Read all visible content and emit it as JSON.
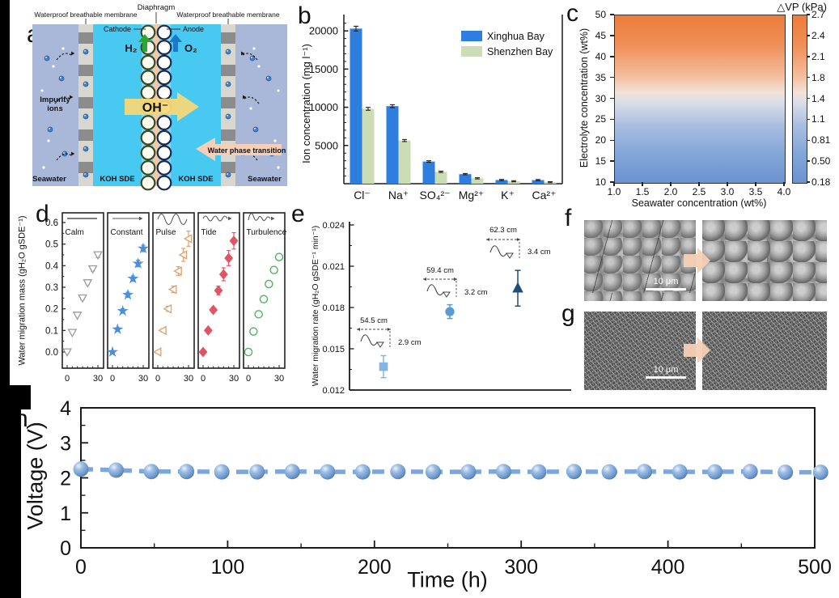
{
  "figure": {
    "panel_labels": {
      "a": "a",
      "b": "b",
      "c": "c",
      "d": "d",
      "e": "e",
      "f": "f",
      "g": "g",
      "h": "h"
    }
  },
  "panel_a": {
    "diaphragm": "Diaphragm",
    "membrane_left": "Waterproof breathable membrane",
    "membrane_right": "Waterproof breathable membrane",
    "cathode": "Cathode",
    "anode": "Anode",
    "h2": "H₂",
    "o2": "O₂",
    "oh": "OH⁻",
    "impurity_line1": "Impurity",
    "impurity_line2": "ions",
    "water_phase_transition": "Water phase transition",
    "seawater_left": "Seawater",
    "seawater_right": "Seawater",
    "koh_sde_left": "KOH SDE",
    "koh_sde_right": "KOH SDE",
    "colors": {
      "seawater_bg": "#a9b7d9",
      "koh": "#48c9f1",
      "diaphragm": "#f0c9a6",
      "membrane_block": "#8c8c8c",
      "membrane_bg": "#d9d8d0",
      "oh_arrow": "#f6d878",
      "phase_arrow": "#f6cfb6",
      "h2_green": "#2aa832",
      "o2_blue": "#1e78c8"
    }
  },
  "panel_f": {
    "scale_bar": "10 μm"
  },
  "panel_g": {
    "scale_bar": "10 μm"
  },
  "chart_data": [
    {
      "panel": "b",
      "type": "bar",
      "ylabel": "Ion concentration (mg l⁻¹)",
      "categories": [
        "Cl⁻",
        "Na⁺",
        "SO₄²⁻",
        "Mg²⁺",
        "K⁺",
        "Ca²⁺"
      ],
      "series": [
        {
          "name": "Xinghua Bay",
          "color": "#2e7ee0",
          "values": [
            20300,
            10150,
            2900,
            1250,
            480,
            470
          ]
        },
        {
          "name": "Shenzhen Bay",
          "color": "#ccdcb4",
          "values": [
            9800,
            5650,
            1550,
            700,
            320,
            200
          ]
        }
      ],
      "yticks": [
        5000,
        10000,
        15000,
        20000
      ],
      "ylim": [
        0,
        21500
      ],
      "legend_position": "top-right",
      "grid": false
    },
    {
      "panel": "c",
      "type": "heatmap",
      "xlabel": "Seawater concentration (wt%)",
      "ylabel": "Electrolyte concentration (wt%)",
      "xticks": [
        "1.0",
        "1.5",
        "2.0",
        "2.5",
        "3.0",
        "3.5",
        "4.0"
      ],
      "yticks": [
        10,
        15,
        20,
        25,
        30,
        35,
        40,
        45,
        50
      ],
      "xlim": [
        1.0,
        4.0
      ],
      "ylim": [
        10,
        50
      ],
      "colorbar_title": "△VP (kPa)",
      "colorbar_ticks": [
        "2.7",
        "2.4",
        "2.1",
        "1.8",
        "1.4",
        "1.1",
        "0.81",
        "0.50",
        "0.18"
      ],
      "gradient_stops": [
        "#ec7c3c 0%",
        "#ef8f57 18%",
        "#f5bd9c 36%",
        "#f1e2d8 46%",
        "#dadfe8 52%",
        "#a9bde0 66%",
        "#84a7d8 82%",
        "#6b93d2 100%"
      ]
    },
    {
      "panel": "d",
      "type": "scatter-multipanel",
      "ylabel": "Water migration mass (gH₂O gSDE⁻¹)",
      "x": [
        0,
        5,
        10,
        15,
        20,
        25,
        30
      ],
      "xticks": [
        0,
        30
      ],
      "yticks": [
        0.0,
        0.1,
        0.2,
        0.3,
        0.4,
        0.5,
        0.6
      ],
      "ylim": [
        -0.075,
        0.645
      ],
      "subpanels": [
        {
          "name": "Calm",
          "marker": "triangle-down",
          "fill": "open",
          "color": "#9a9a9a",
          "values": [
            0,
            0.09,
            0.17,
            0.25,
            0.32,
            0.385,
            0.45
          ],
          "errors": [
            0,
            0.005,
            0.005,
            0.008,
            0.008,
            0.01,
            0.012
          ]
        },
        {
          "name": "Constant",
          "marker": "star",
          "fill": "solid",
          "color": "#4a90d9",
          "values": [
            0,
            0.105,
            0.19,
            0.265,
            0.34,
            0.41,
            0.48
          ],
          "errors": [
            0,
            0.008,
            0.01,
            0.012,
            0.012,
            0.015,
            0.015
          ]
        },
        {
          "name": "Pulse",
          "marker": "triangle-left",
          "fill": "open",
          "color": "#e2a06c",
          "values": [
            0,
            0.1,
            0.2,
            0.29,
            0.375,
            0.45,
            0.525
          ],
          "errors": [
            0,
            0.008,
            0.012,
            0.015,
            0.02,
            0.03,
            0.035
          ]
        },
        {
          "name": "Tide",
          "marker": "diamond",
          "fill": "solid",
          "color": "#e05566",
          "values": [
            0,
            0.1,
            0.195,
            0.285,
            0.36,
            0.435,
            0.515
          ],
          "errors": [
            0,
            0.008,
            0.012,
            0.02,
            0.03,
            0.035,
            0.038
          ]
        },
        {
          "name": "Turbulence",
          "marker": "circle",
          "fill": "open",
          "color": "#4db35a",
          "values": [
            0,
            0.095,
            0.175,
            0.245,
            0.315,
            0.38,
            0.44
          ],
          "errors": [
            0,
            0.012,
            0.008,
            0.01,
            0.012,
            0.012,
            0.012
          ]
        }
      ]
    },
    {
      "panel": "e",
      "type": "scatter",
      "ylabel": "Water migration rate (gH₂O gSDE⁻¹ min⁻¹)",
      "yticks": [
        "0.012",
        "0.015",
        "0.018",
        "0.021",
        "0.024"
      ],
      "ylim": [
        0.012,
        0.024
      ],
      "points": [
        {
          "y": 0.0137,
          "error": 0.0008,
          "marker": "square",
          "color": "#85b6e2",
          "wavelength": "54.5 cm",
          "amplitude": "2.9 cm"
        },
        {
          "y": 0.0177,
          "error": 0.0005,
          "marker": "circle",
          "color": "#5b9bd5",
          "wavelength": "59.4 cm",
          "amplitude": "3.2 cm"
        },
        {
          "y": 0.0194,
          "error": 0.0013,
          "marker": "triangle-up",
          "color": "#1f4e79",
          "wavelength": "62.3 cm",
          "amplitude": "3.4 cm"
        }
      ]
    },
    {
      "panel": "h",
      "type": "line-scatter",
      "xlabel": "Time (h)",
      "ylabel": "Voltage (V)",
      "xticks": [
        0,
        100,
        200,
        300,
        400,
        500
      ],
      "yticks": [
        0,
        1,
        2,
        3,
        4
      ],
      "xlim": [
        0,
        500
      ],
      "ylim": [
        0,
        4
      ],
      "marker_color": "#6f9bd2",
      "line_color": "#7da7d9",
      "line_style": "dashed",
      "x": [
        0,
        24,
        48,
        72,
        96,
        120,
        144,
        168,
        192,
        216,
        240,
        264,
        288,
        312,
        336,
        360,
        384,
        408,
        432,
        456,
        480,
        504
      ],
      "y": [
        2.25,
        2.22,
        2.18,
        2.18,
        2.17,
        2.17,
        2.18,
        2.17,
        2.17,
        2.18,
        2.17,
        2.17,
        2.18,
        2.17,
        2.18,
        2.17,
        2.18,
        2.17,
        2.17,
        2.18,
        2.16,
        2.16
      ]
    }
  ]
}
